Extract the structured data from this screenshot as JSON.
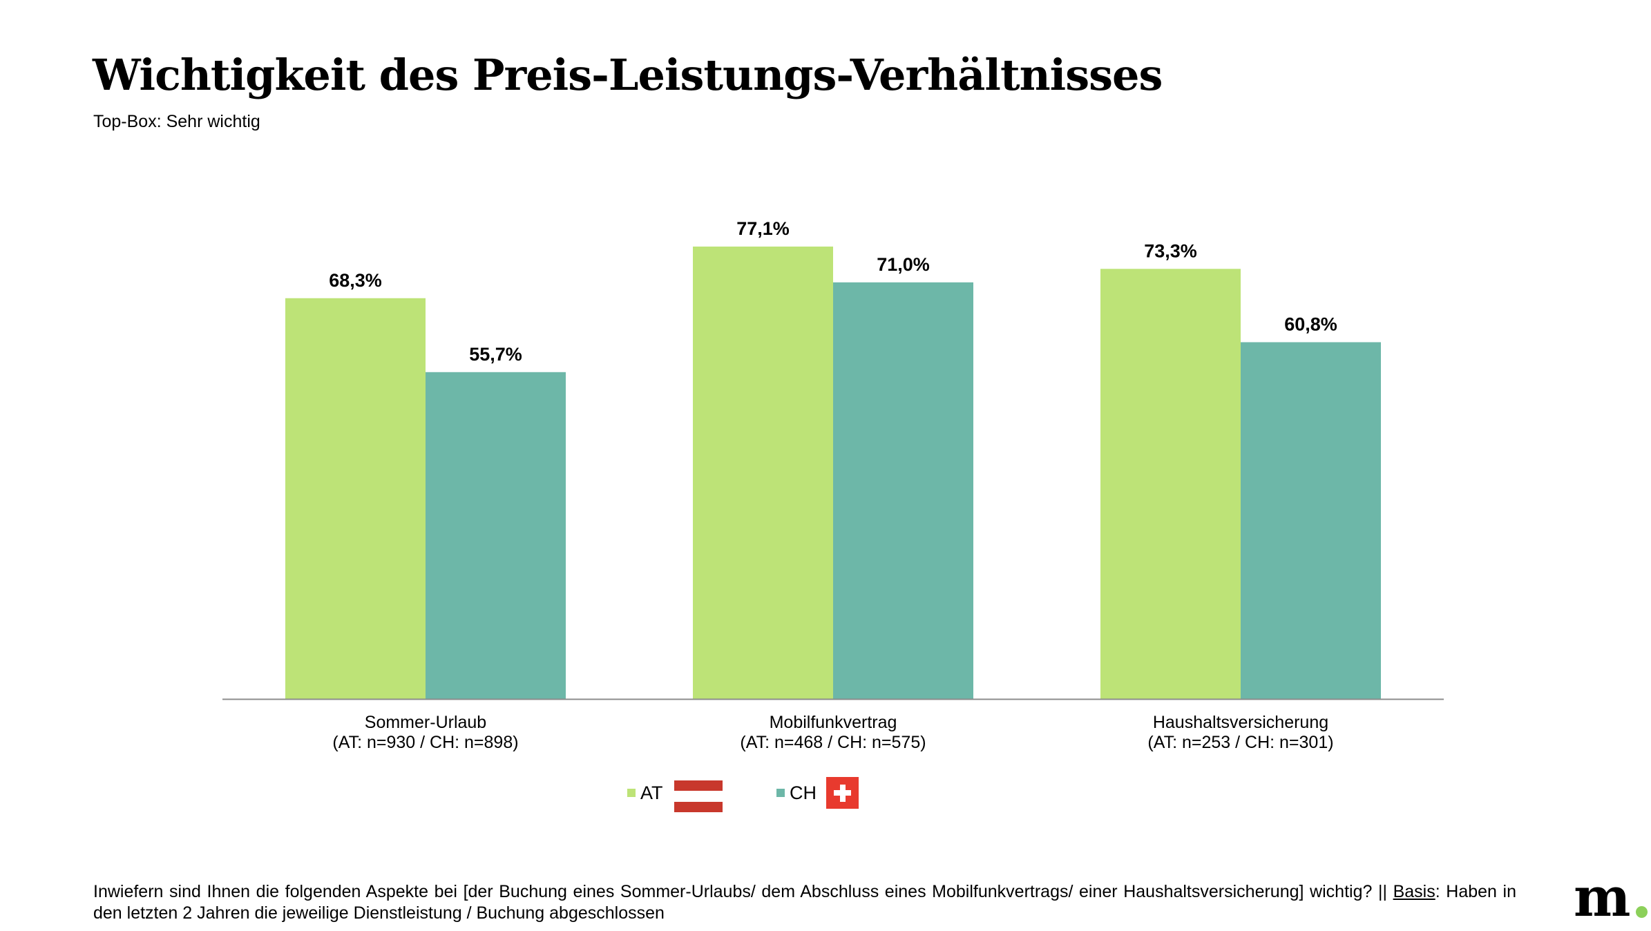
{
  "header": {
    "title": "Wichtigkeit des Preis-Leistungs-Verhältnisses",
    "subtitle": "Top-Box: Sehr wichtig"
  },
  "chart_data": {
    "type": "bar",
    "categories": [
      [
        "Sommer-Urlaub",
        "(AT: n=930 / CH: n=898)"
      ],
      [
        "Mobilfunkvertrag",
        "(AT: n=468 / CH: n=575)"
      ],
      [
        "Haushaltsversicherung",
        "(AT: n=253 / CH: n=301)"
      ]
    ],
    "series": [
      {
        "name": "AT",
        "values": [
          68.3,
          77.1,
          73.3
        ],
        "labels": [
          "68,3%",
          "77,1%",
          "73,3%"
        ],
        "color": "#bde377"
      },
      {
        "name": "CH",
        "values": [
          55.7,
          71.0,
          60.8
        ],
        "labels": [
          "55,7%",
          "71,0%",
          "60,8%"
        ],
        "color": "#6db7a8"
      }
    ],
    "ylim": [
      0,
      100
    ],
    "grid": false,
    "legend": "bottom-center"
  },
  "legend": {
    "items": [
      {
        "label": "AT",
        "flag": "austria-flag-icon"
      },
      {
        "label": "CH",
        "flag": "switzerland-flag-icon"
      }
    ]
  },
  "footnote": {
    "text_before": "Inwiefern sind Ihnen die folgenden Aspekte bei [der Buchung eines Sommer-Urlaubs/ dem Abschluss eines Mobilfunkvertrags/ einer Haushaltsversicherung] wichtig? || ",
    "basis_label": "Basis",
    "text_after": ": Haben in den letzten 2 Jahren die jeweilige Dienstleistung / Buchung abgeschlossen"
  },
  "brand": {
    "logo_text": "m",
    "dot_color": "#8cd05a"
  }
}
